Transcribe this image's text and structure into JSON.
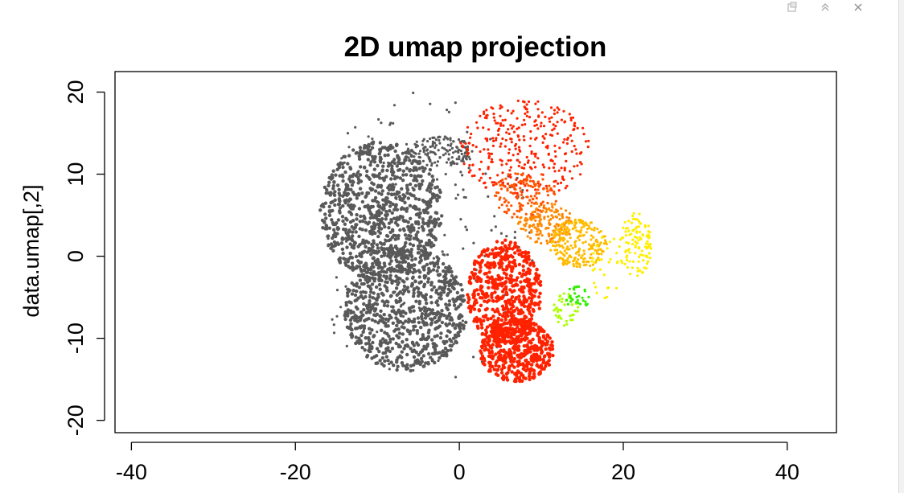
{
  "window": {
    "icons": [
      "popout-icon",
      "maximize-icon",
      "close-icon"
    ]
  },
  "chart_data": {
    "type": "scatter",
    "title": "2D umap projection",
    "xlabel": "",
    "ylabel": "data.umap[,2]",
    "xlim": [
      -42,
      46
    ],
    "ylim": [
      -21.5,
      22.5
    ],
    "xticks": [
      -40,
      -20,
      0,
      20,
      40
    ],
    "yticks": [
      -20,
      -10,
      0,
      10,
      20
    ],
    "x_tick_labels": [
      "-40",
      "-20",
      "0",
      "20",
      "40"
    ],
    "y_tick_labels": [
      "-20",
      "-10",
      "0",
      "10",
      "20"
    ],
    "grid": false,
    "legend": "none",
    "clusters": [
      {
        "color": "#595959",
        "cx": -9.5,
        "cy": 5.5,
        "rx": 7.5,
        "ry": 8.5,
        "n": 900
      },
      {
        "color": "#595959",
        "cx": -6.5,
        "cy": -6.5,
        "rx": 7.5,
        "ry": 7.5,
        "n": 800
      },
      {
        "color": "#595959",
        "cx": -2.5,
        "cy": 12.8,
        "rx": 4.5,
        "ry": 1.8,
        "n": 150
      },
      {
        "color": "#595959",
        "cx": -4.5,
        "cy": 2.0,
        "rx": 14.0,
        "ry": 18.0,
        "n": 160
      },
      {
        "color": "#ff2200",
        "cx": 5.5,
        "cy": -4.5,
        "rx": 4.5,
        "ry": 6.5,
        "n": 550
      },
      {
        "color": "#ff2200",
        "cx": 7.0,
        "cy": -11.5,
        "rx": 4.5,
        "ry": 3.8,
        "n": 450
      },
      {
        "color": "#ff2200",
        "cx": 8.0,
        "cy": 13.0,
        "rx": 8.0,
        "ry": 6.0,
        "n": 320
      },
      {
        "color": "#ff5500",
        "cx": 8.0,
        "cy": 7.5,
        "rx": 4.0,
        "ry": 3.0,
        "n": 140
      },
      {
        "color": "#ff8800",
        "cx": 10.5,
        "cy": 4.0,
        "rx": 3.5,
        "ry": 2.5,
        "n": 160
      },
      {
        "color": "#ffbb00",
        "cx": 14.5,
        "cy": 1.5,
        "rx": 3.5,
        "ry": 3.0,
        "n": 220
      },
      {
        "color": "#ffee00",
        "cx": 21.5,
        "cy": 1.5,
        "rx": 2.0,
        "ry": 4.0,
        "n": 110
      },
      {
        "color": "#ffee00",
        "cx": 18.0,
        "cy": -1.5,
        "rx": 2.0,
        "ry": 4.0,
        "n": 30
      },
      {
        "color": "#aaff00",
        "cx": 13.0,
        "cy": -6.5,
        "rx": 1.5,
        "ry": 2.0,
        "n": 40
      },
      {
        "color": "#33ee00",
        "cx": 14.5,
        "cy": -5.0,
        "rx": 1.5,
        "ry": 1.5,
        "n": 30
      }
    ]
  }
}
